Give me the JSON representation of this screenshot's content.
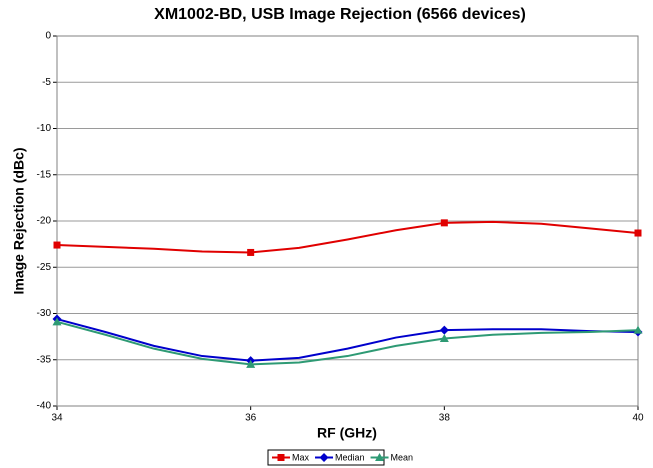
{
  "chart_data": {
    "type": "line",
    "title": "XM1002-BD, USB Image Rejection (6566 devices)",
    "xlabel": "RF (GHz)",
    "ylabel": "Image Rejection (dBc)",
    "x": [
      34,
      34.5,
      35,
      35.5,
      36,
      36.5,
      37,
      37.5,
      38,
      38.5,
      39,
      39.5,
      40
    ],
    "series": [
      {
        "name": "Max",
        "color": "#e00000",
        "marker": "square",
        "values": [
          -22.6,
          -22.8,
          -23.0,
          -23.3,
          -23.4,
          -22.9,
          -22.0,
          -21.0,
          -20.2,
          -20.1,
          -20.3,
          -20.8,
          -21.3
        ]
      },
      {
        "name": "Median",
        "color": "#0000cc",
        "marker": "diamond",
        "values": [
          -30.6,
          -32.0,
          -33.5,
          -34.6,
          -35.1,
          -34.8,
          -33.8,
          -32.6,
          -31.8,
          -31.7,
          -31.7,
          -31.9,
          -32.0
        ]
      },
      {
        "name": "Mean",
        "color": "#2e9a74",
        "marker": "triangle",
        "values": [
          -30.9,
          -32.3,
          -33.8,
          -34.9,
          -35.5,
          -35.3,
          -34.6,
          -33.5,
          -32.7,
          -32.3,
          -32.1,
          -32.0,
          -31.8
        ]
      }
    ],
    "xlim": [
      34,
      40
    ],
    "xticks": [
      34,
      36,
      38,
      40
    ],
    "ylim": [
      -40,
      0
    ],
    "yticks": [
      0,
      -5,
      -10,
      -15,
      -20,
      -25,
      -30,
      -35,
      -40
    ],
    "grid": true,
    "legend": "bottom"
  }
}
